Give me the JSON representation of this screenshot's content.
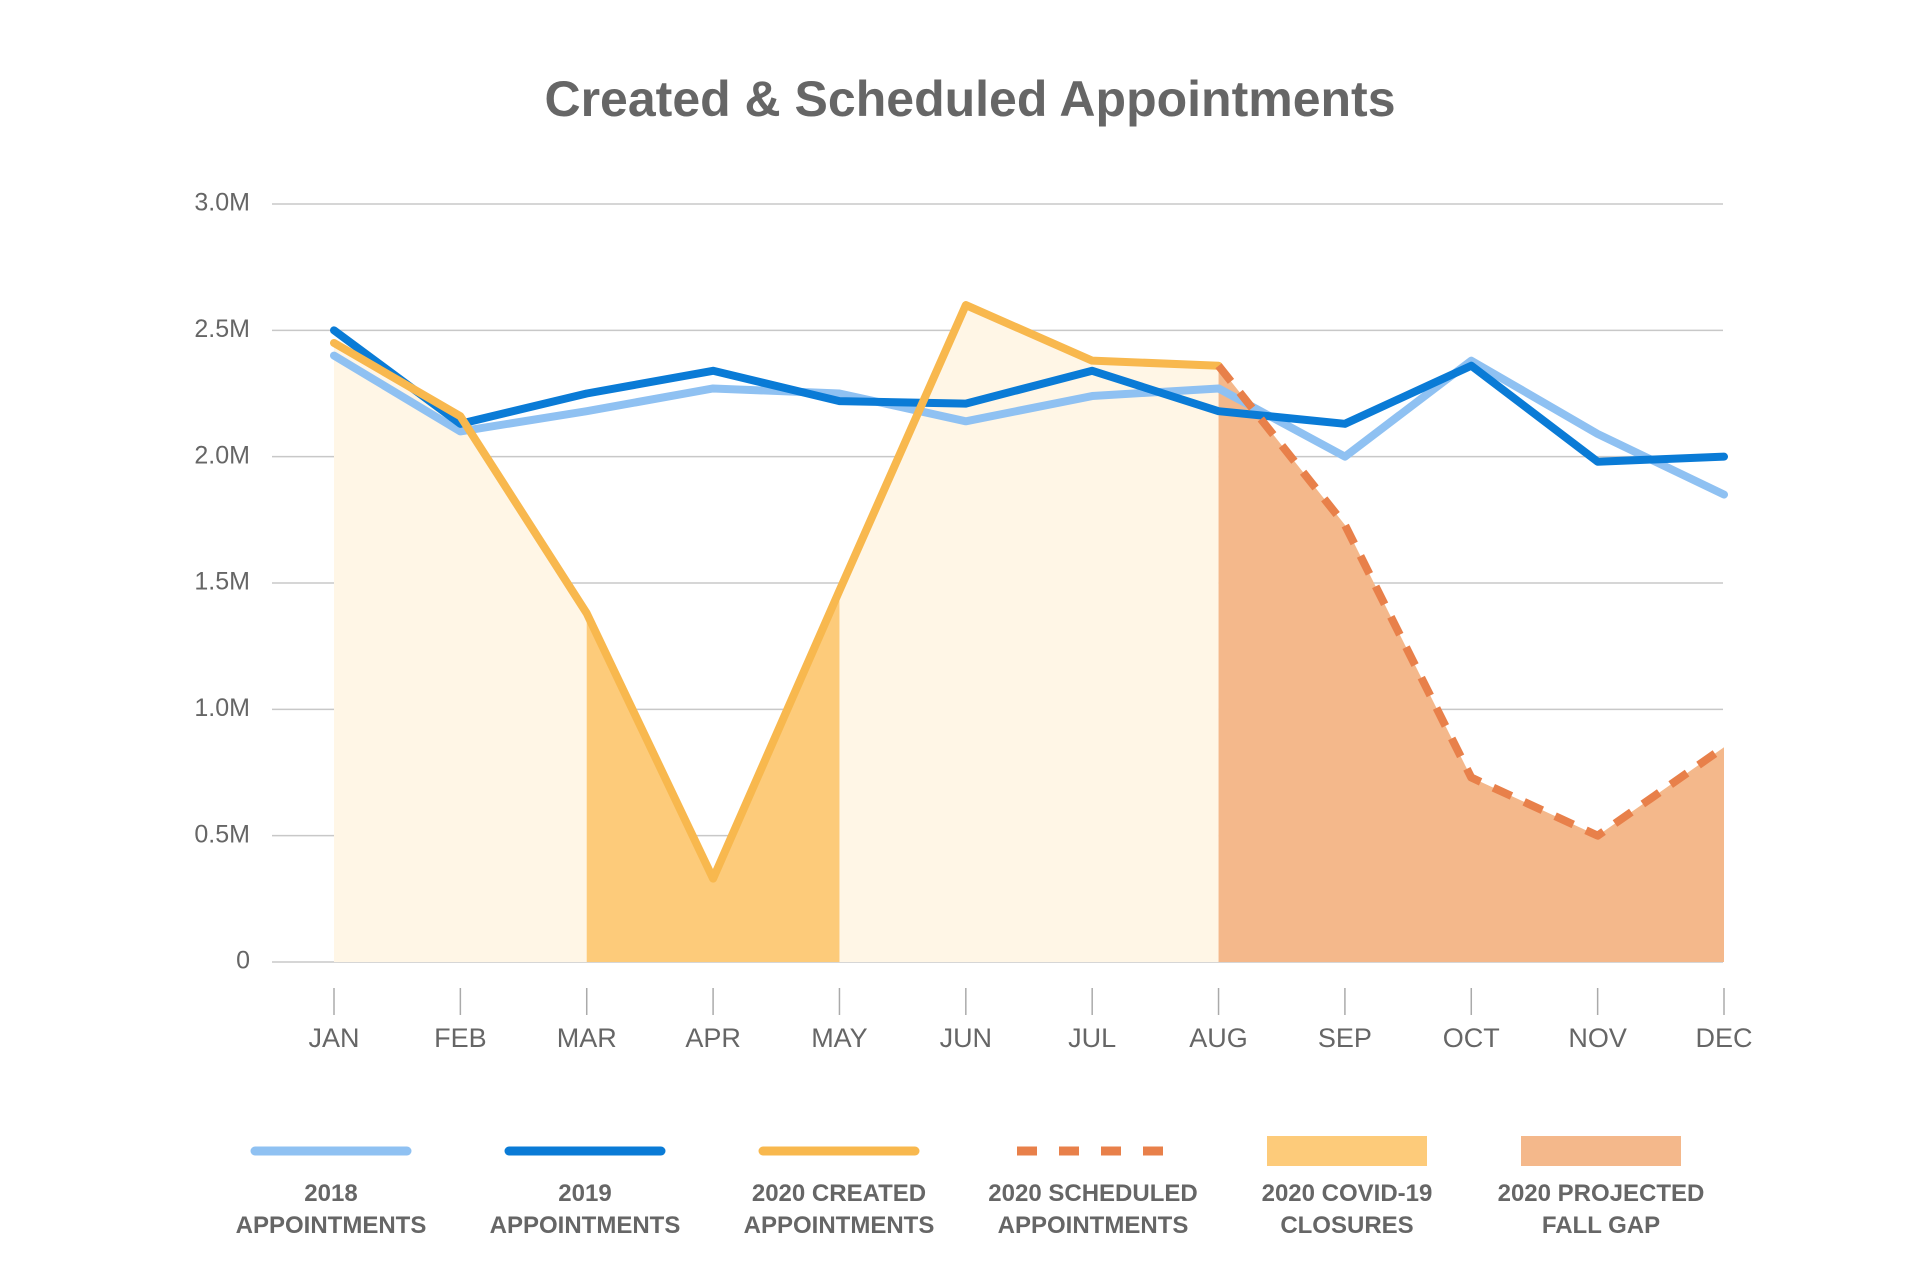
{
  "chart_data": {
    "type": "line",
    "title": "Created & Scheduled Appointments",
    "categories": [
      "JAN",
      "FEB",
      "MAR",
      "APR",
      "MAY",
      "JUN",
      "JUL",
      "AUG",
      "SEP",
      "OCT",
      "NOV",
      "DEC"
    ],
    "ylim": [
      0,
      3000000
    ],
    "yticks": [
      0,
      {
        "value": 500000,
        "label": "0.5M"
      },
      {
        "value": 1000000,
        "label": "1.0M"
      },
      {
        "value": 1500000,
        "label": "1.5M"
      },
      {
        "value": 2000000,
        "label": "2.0M"
      },
      {
        "value": 2500000,
        "label": "2.5M"
      },
      {
        "value": 3000000,
        "label": "3.0M"
      }
    ],
    "grid": true,
    "legend": "bottom",
    "series": [
      {
        "name": "2018 APPOINTMENTS",
        "color": "#8fc1f2",
        "values": [
          2400000,
          2100000,
          2180000,
          2270000,
          2250000,
          2140000,
          2240000,
          2270000,
          2000000,
          2380000,
          2090000,
          1850000
        ]
      },
      {
        "name": "2019 APPOINTMENTS",
        "color": "#0a7bd6",
        "values": [
          2500000,
          2130000,
          2250000,
          2340000,
          2220000,
          2210000,
          2340000,
          2180000,
          2130000,
          2360000,
          1980000,
          2000000
        ]
      },
      {
        "name": "2020 CREATED APPOINTMENTS",
        "color": "#f8b84e",
        "fill": "#fff6e6",
        "values": [
          2450000,
          2160000,
          1380000,
          330000,
          1470000,
          2600000,
          2380000,
          2360000,
          null,
          null,
          null,
          null
        ]
      },
      {
        "name": "2020 SCHEDULED APPOINTMENTS",
        "color": "#e8804a",
        "dashed": true,
        "values": [
          null,
          null,
          null,
          null,
          null,
          null,
          null,
          2360000,
          1730000,
          730000,
          500000,
          850000
        ]
      }
    ],
    "areas": [
      {
        "name": "2020 COVID-19 CLOSURES",
        "color": "#fdcb7a",
        "under": "2020 CREATED APPOINTMENTS",
        "from": "MAR",
        "to": "MAY"
      },
      {
        "name": "2020 PROJECTED FALL GAP",
        "color": "#f4b88b",
        "under": "2020 SCHEDULED APPOINTMENTS",
        "from": "AUG",
        "to": "DEC"
      }
    ]
  }
}
